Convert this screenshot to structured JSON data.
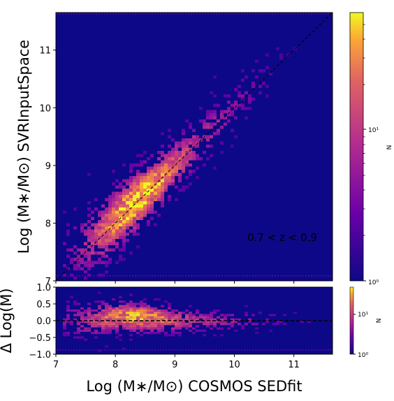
{
  "chart_data": [
    {
      "type": "heatmap",
      "title": "",
      "xlabel": "Log (M∗/M⊙) COSMOS SEDfit",
      "ylabel": "Log (M∗/M⊙) SVRInputSpace",
      "xlim": [
        7.0,
        11.65
      ],
      "ylim": [
        7.0,
        11.65
      ],
      "x_ticks": [
        "7",
        "8",
        "9",
        "10",
        "11"
      ],
      "y_ticks": [
        "7",
        "8",
        "9",
        "10",
        "11"
      ],
      "annotation": "0.7 < z < 0.9",
      "reference_line": {
        "style": "dashed",
        "from": [
          7.0,
          7.0
        ],
        "to": [
          11.65,
          11.65
        ]
      },
      "density_ridge": [
        {
          "x": 7.3,
          "y": 7.5
        },
        {
          "x": 7.8,
          "y": 7.85
        },
        {
          "x": 8.2,
          "y": 8.25
        },
        {
          "x": 8.6,
          "y": 8.6
        },
        {
          "x": 9.0,
          "y": 9.0
        },
        {
          "x": 9.5,
          "y": 9.5
        },
        {
          "x": 10.0,
          "y": 10.0
        },
        {
          "x": 10.5,
          "y": 10.5
        },
        {
          "x": 11.0,
          "y": 11.0
        },
        {
          "x": 11.4,
          "y": 11.4
        }
      ],
      "colormap": "plasma",
      "grid": false
    },
    {
      "type": "heatmap",
      "xlabel": "Log (M∗/M⊙) COSMOS SEDfit",
      "ylabel": "Δ Log(M)",
      "xlim": [
        7.0,
        11.65
      ],
      "ylim": [
        -1.0,
        1.0
      ],
      "x_ticks": [
        "7",
        "8",
        "9",
        "10",
        "11"
      ],
      "y_ticks": [
        "−1.0",
        "−0.5",
        "0.0",
        "0.5",
        "1.0"
      ],
      "reference_line": {
        "style": "dashed",
        "y": 0.0
      },
      "colormap": "plasma",
      "grid": false
    }
  ],
  "colorbars": {
    "main": {
      "label": "N",
      "scale": "log",
      "ticks": [
        "10⁰",
        "10¹"
      ],
      "range": [
        1,
        60
      ]
    },
    "residual": {
      "label": "N",
      "scale": "log",
      "ticks": [
        "10⁰",
        "10¹"
      ],
      "range": [
        1,
        60
      ]
    }
  },
  "colors": {
    "background": "#0d0887",
    "low": "#6a00a8",
    "mid": "#e16462",
    "high": "#fca636",
    "peak": "#f0f921"
  }
}
